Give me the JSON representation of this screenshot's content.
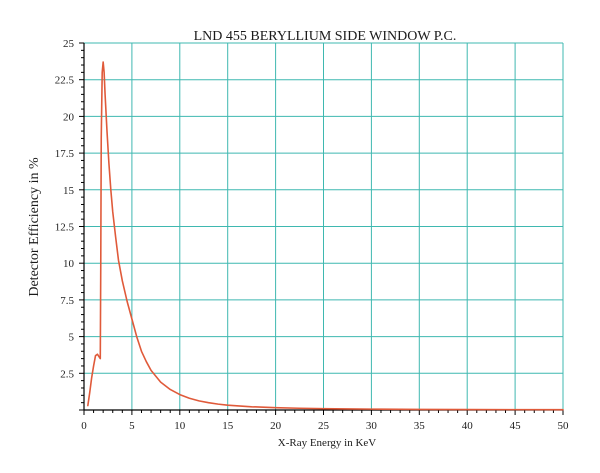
{
  "chart_data": {
    "type": "line",
    "title": "LND 455 BERYLLIUM SIDE WINDOW P.C.",
    "xlabel": "X-Ray Energy in KeV",
    "ylabel": "Detector Efficiency in %",
    "xlim": [
      0,
      50
    ],
    "ylim": [
      0,
      25
    ],
    "x_ticks": [
      0,
      5,
      10,
      15,
      20,
      25,
      30,
      35,
      40,
      45,
      50
    ],
    "y_ticks": [
      0,
      2.5,
      5,
      7.5,
      10,
      12.5,
      15,
      17.5,
      20,
      22.5,
      25
    ],
    "x_tick_labels": [
      "0",
      "5",
      "10",
      "15",
      "20",
      "25",
      "30",
      "35",
      "40",
      "45",
      "50"
    ],
    "y_tick_labels": [
      "",
      "2.5",
      "5",
      "7.5",
      "10",
      "12.5",
      "15",
      "17.5",
      "20",
      "22.5",
      "25"
    ],
    "grid": true,
    "grid_color": "#3fb8b0",
    "line_color": "#e05a3a",
    "series": [
      {
        "x": [
          0.4,
          0.6,
          0.8,
          1.0,
          1.2,
          1.4,
          1.6,
          1.7,
          1.75,
          1.8,
          1.9,
          2.0,
          2.1,
          2.2,
          2.4,
          2.6,
          2.8,
          3.0,
          3.3,
          3.6,
          4.0,
          4.5,
          5.0,
          5.5,
          6.0,
          6.5,
          7.0,
          8.0,
          9.0,
          10.0,
          11.0,
          12.0,
          13.0,
          14.0,
          15.0,
          17.5,
          20.0,
          22.5,
          25.0,
          27.5,
          30.0,
          35.0,
          40.0,
          45.0,
          50.0
        ],
        "y": [
          0.3,
          1.2,
          2.2,
          3.0,
          3.7,
          3.8,
          3.6,
          3.5,
          10.0,
          18.5,
          23.0,
          23.7,
          23.0,
          21.5,
          19.0,
          16.8,
          15.0,
          13.5,
          11.8,
          10.2,
          8.8,
          7.4,
          6.2,
          5.0,
          4.0,
          3.3,
          2.7,
          1.9,
          1.4,
          1.05,
          0.8,
          0.62,
          0.5,
          0.4,
          0.33,
          0.22,
          0.16,
          0.12,
          0.09,
          0.07,
          0.06,
          0.04,
          0.03,
          0.025,
          0.02
        ]
      }
    ]
  }
}
